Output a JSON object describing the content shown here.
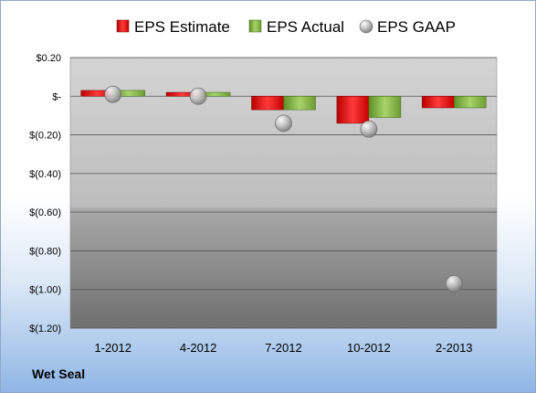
{
  "footer_label": "Wet Seal",
  "colors": {
    "estimate": "#e02020",
    "actual": "#8ab84a",
    "gaap": "#b8b8b8"
  },
  "chart_data": {
    "type": "bar",
    "categories": [
      "1-2012",
      "4-2012",
      "7-2012",
      "10-2012",
      "2-2013"
    ],
    "series": [
      {
        "name": "EPS Estimate",
        "kind": "bar",
        "values": [
          0.03,
          0.02,
          -0.07,
          -0.14,
          -0.06
        ]
      },
      {
        "name": "EPS Actual",
        "kind": "bar",
        "values": [
          0.03,
          0.02,
          -0.07,
          -0.11,
          -0.06
        ]
      },
      {
        "name": "EPS GAAP",
        "kind": "marker",
        "values": [
          0.01,
          0.0,
          -0.14,
          -0.17,
          -0.97
        ]
      }
    ],
    "ylim": [
      -1.2,
      0.2
    ],
    "yticks": [
      0.2,
      0,
      -0.2,
      -0.4,
      -0.6,
      -0.8,
      -1.0,
      -1.2
    ],
    "ytick_labels": [
      "$0.20",
      "$-",
      "$(0.20)",
      "$(0.40)",
      "$(0.60)",
      "$(0.80)",
      "$(1.00)",
      "$(1.20)"
    ],
    "grid": true,
    "legend_position": "top"
  }
}
